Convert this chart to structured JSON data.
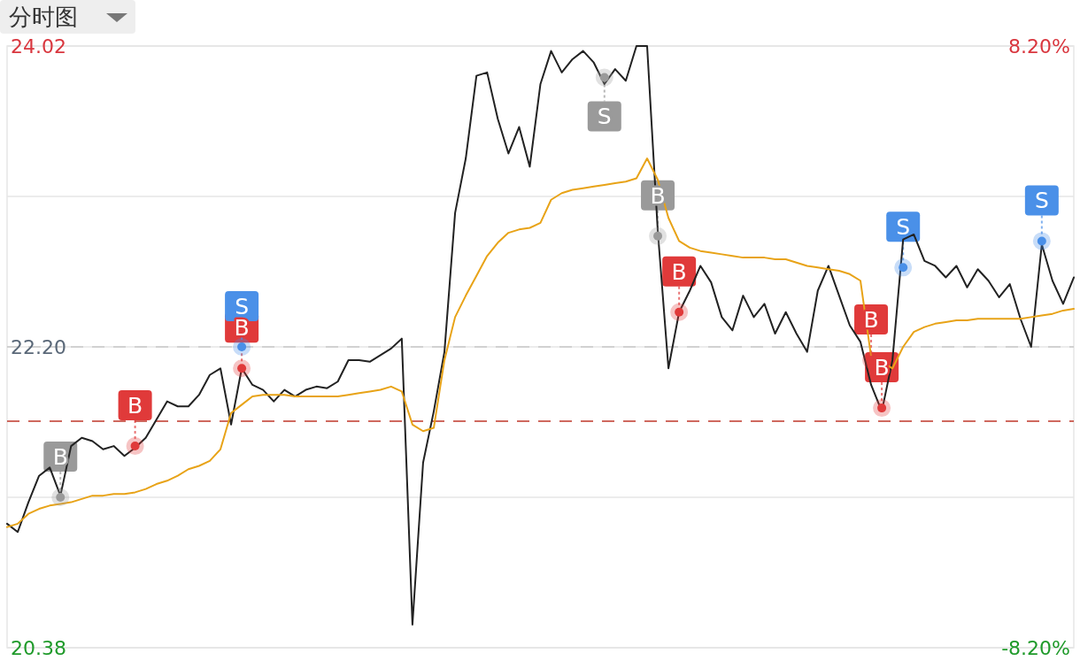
{
  "chart_data": {
    "type": "line",
    "title": "分时图",
    "categories": [
      null,
      null,
      null,
      null,
      null,
      null,
      null,
      null,
      null,
      null,
      null,
      null,
      null,
      null,
      null,
      null,
      null,
      null,
      null,
      null,
      null,
      null,
      null,
      null,
      null,
      null,
      null,
      null,
      null,
      null,
      null,
      null,
      null,
      null,
      null,
      null,
      null,
      null,
      null,
      null,
      null,
      null,
      null,
      null,
      null,
      null,
      null,
      null,
      null,
      null,
      null,
      null,
      null,
      null,
      null,
      null,
      null,
      null,
      null,
      null,
      null,
      null,
      null,
      null,
      null,
      null,
      null,
      null,
      null,
      null,
      null,
      null,
      null,
      null,
      null,
      null,
      null,
      null,
      null,
      null,
      null,
      null,
      null,
      null,
      null,
      null,
      null,
      null,
      null,
      null,
      null,
      null,
      null,
      null,
      null,
      null,
      null,
      null,
      null,
      null,
      null
    ],
    "ylim": [
      20.38,
      24.02
    ],
    "yticks": [
      20.38,
      {
        "value": 21.29,
        "label": null
      },
      {
        "value": 22.2,
        "label": "22.20"
      },
      {
        "value": 23.11,
        "label": null
      },
      24.02
    ],
    "y2lim": [
      -8.2,
      8.2
    ],
    "y2ticks": [
      {
        "value": -8.2,
        "label": "-8.20%"
      },
      {
        "value": 8.2,
        "label": "8.20%"
      }
    ],
    "grid": "y",
    "ref_lines": [
      {
        "axis": "y",
        "value": 22.2,
        "color": "#c8c8c8",
        "line_style": "dashed"
      },
      {
        "axis": "y",
        "value": 21.75,
        "color": "#c0392b",
        "line_style": "dashed"
      }
    ],
    "series": [
      {
        "color": "#222222",
        "values": [
          21.13,
          21.08,
          21.26,
          21.42,
          21.47,
          21.3,
          21.6,
          21.65,
          21.63,
          21.58,
          21.6,
          21.54,
          21.59,
          21.65,
          21.76,
          21.87,
          21.84,
          21.84,
          21.91,
          22.03,
          22.07,
          21.73,
          22.07,
          21.97,
          21.94,
          21.87,
          21.94,
          21.9,
          21.94,
          21.96,
          21.95,
          21.99,
          22.12,
          22.12,
          22.11,
          22.15,
          22.19,
          22.25,
          20.52,
          21.5,
          21.81,
          22.17,
          23.01,
          23.34,
          23.84,
          23.86,
          23.58,
          23.37,
          23.53,
          23.29,
          23.79,
          23.99,
          23.86,
          23.94,
          23.99,
          23.92,
          23.79,
          23.88,
          23.81,
          24.02,
          24.02,
          22.9,
          22.07,
          22.41,
          22.54,
          22.69,
          22.59,
          22.38,
          22.3,
          22.51,
          22.38,
          22.46,
          22.28,
          22.41,
          22.28,
          22.17,
          22.54,
          22.69,
          22.51,
          22.33,
          22.23,
          21.97,
          21.81,
          22.12,
          22.85,
          22.88,
          22.72,
          22.69,
          22.62,
          22.69,
          22.56,
          22.67,
          22.6,
          22.5,
          22.58,
          22.37,
          22.2,
          22.82,
          22.6,
          22.46,
          22.62
        ]
      },
      {
        "color": "#e8a317",
        "values": [
          21.11,
          21.13,
          21.19,
          21.22,
          21.24,
          21.25,
          21.26,
          21.28,
          21.3,
          21.3,
          21.31,
          21.31,
          21.32,
          21.34,
          21.37,
          21.39,
          21.42,
          21.46,
          21.48,
          21.51,
          21.58,
          21.8,
          21.85,
          21.9,
          21.91,
          21.91,
          21.91,
          21.9,
          21.9,
          21.9,
          21.9,
          21.9,
          21.91,
          21.92,
          21.93,
          21.94,
          21.96,
          21.93,
          21.73,
          21.69,
          21.71,
          22.12,
          22.38,
          22.51,
          22.63,
          22.75,
          22.83,
          22.89,
          22.91,
          22.92,
          22.95,
          23.09,
          23.13,
          23.15,
          23.16,
          23.17,
          23.18,
          23.19,
          23.2,
          23.22,
          23.34,
          23.21,
          22.98,
          22.84,
          22.8,
          22.78,
          22.77,
          22.76,
          22.75,
          22.74,
          22.74,
          22.74,
          22.73,
          22.73,
          22.71,
          22.69,
          22.68,
          22.67,
          22.66,
          22.64,
          22.6,
          22.14,
          22.11,
          22.07,
          22.2,
          22.29,
          22.32,
          22.34,
          22.35,
          22.36,
          22.36,
          22.37,
          22.37,
          22.37,
          22.37,
          22.37,
          22.38,
          22.39,
          22.4,
          22.42,
          22.43
        ]
      },
      {
        "type": "scatter",
        "color": "#9a9a9a",
        "values": [
          null,
          null,
          null,
          null,
          null,
          21.29,
          null,
          null,
          null,
          null,
          null,
          null,
          null,
          null,
          null,
          null,
          null,
          null,
          null,
          null,
          null,
          null,
          null,
          null,
          null,
          null,
          null,
          null,
          null,
          null,
          null,
          null,
          null,
          null,
          null,
          null,
          null,
          null,
          null,
          null,
          null,
          null,
          null,
          null,
          null,
          null,
          null,
          null,
          null,
          null,
          null,
          null,
          null,
          null,
          null,
          null,
          23.83,
          null,
          null,
          null,
          null,
          22.87,
          null,
          null,
          null,
          null,
          null,
          null,
          null,
          null,
          null,
          null,
          null,
          null,
          null,
          null,
          null,
          null,
          null,
          null,
          null,
          null,
          null,
          null,
          null,
          null,
          null,
          null,
          null,
          null,
          null,
          null,
          null,
          null,
          null,
          null,
          null,
          null,
          null,
          null,
          null
        ],
        "value_labels": [
          null,
          null,
          null,
          null,
          null,
          "B",
          null,
          null,
          null,
          null,
          null,
          null,
          null,
          null,
          null,
          null,
          null,
          null,
          null,
          null,
          null,
          null,
          null,
          null,
          null,
          null,
          null,
          null,
          null,
          null,
          null,
          null,
          null,
          null,
          null,
          null,
          null,
          null,
          null,
          null,
          null,
          null,
          null,
          null,
          null,
          null,
          null,
          null,
          null,
          null,
          null,
          null,
          null,
          null,
          null,
          null,
          "S",
          null,
          null,
          null,
          null,
          "B",
          null,
          null,
          null,
          null,
          null,
          null,
          null,
          null,
          null,
          null,
          null,
          null,
          null,
          null,
          null,
          null,
          null,
          null,
          null,
          null,
          null,
          null,
          null,
          null,
          null,
          null,
          null,
          null,
          null,
          null,
          null,
          null,
          null,
          null,
          null,
          null,
          null,
          null,
          null
        ]
      },
      {
        "type": "scatter",
        "color": "#e03a3a",
        "values": [
          null,
          null,
          null,
          null,
          null,
          null,
          null,
          null,
          null,
          null,
          null,
          null,
          21.6,
          null,
          null,
          null,
          null,
          null,
          null,
          null,
          null,
          null,
          22.07,
          null,
          null,
          null,
          null,
          null,
          null,
          null,
          null,
          null,
          null,
          null,
          null,
          null,
          null,
          null,
          null,
          null,
          null,
          null,
          null,
          null,
          null,
          null,
          null,
          null,
          null,
          null,
          null,
          null,
          null,
          null,
          null,
          null,
          null,
          null,
          null,
          null,
          null,
          null,
          null,
          22.41,
          null,
          null,
          null,
          null,
          null,
          null,
          null,
          null,
          null,
          null,
          null,
          null,
          null,
          null,
          null,
          null,
          null,
          22.12,
          21.83,
          null,
          null,
          null,
          null,
          null,
          null,
          null,
          null,
          null,
          null,
          null,
          null,
          null,
          null,
          null,
          null,
          null,
          null
        ],
        "value_labels": [
          null,
          null,
          null,
          null,
          null,
          null,
          null,
          null,
          null,
          null,
          null,
          null,
          "B",
          null,
          null,
          null,
          null,
          null,
          null,
          null,
          null,
          null,
          "B",
          null,
          null,
          null,
          null,
          null,
          null,
          null,
          null,
          null,
          null,
          null,
          null,
          null,
          null,
          null,
          null,
          null,
          null,
          null,
          null,
          null,
          null,
          null,
          null,
          null,
          null,
          null,
          null,
          null,
          null,
          null,
          null,
          null,
          null,
          null,
          null,
          null,
          null,
          null,
          null,
          "B",
          null,
          null,
          null,
          null,
          null,
          null,
          null,
          null,
          null,
          null,
          null,
          null,
          null,
          null,
          null,
          null,
          null,
          "B",
          "B",
          null,
          null,
          null,
          null,
          null,
          null,
          null,
          null,
          null,
          null,
          null,
          null,
          null,
          null,
          null,
          null,
          null,
          null
        ]
      },
      {
        "type": "scatter",
        "color": "#4a90e8",
        "values": [
          null,
          null,
          null,
          null,
          null,
          null,
          null,
          null,
          null,
          null,
          null,
          null,
          null,
          null,
          null,
          null,
          null,
          null,
          null,
          null,
          null,
          null,
          22.2,
          null,
          null,
          null,
          null,
          null,
          null,
          null,
          null,
          null,
          null,
          null,
          null,
          null,
          null,
          null,
          null,
          null,
          null,
          null,
          null,
          null,
          null,
          null,
          null,
          null,
          null,
          null,
          null,
          null,
          null,
          null,
          null,
          null,
          null,
          null,
          null,
          null,
          null,
          null,
          null,
          null,
          null,
          null,
          null,
          null,
          null,
          null,
          null,
          null,
          null,
          null,
          null,
          null,
          null,
          null,
          null,
          null,
          null,
          null,
          null,
          null,
          22.68,
          null,
          null,
          null,
          null,
          null,
          null,
          null,
          null,
          null,
          null,
          null,
          null,
          22.84,
          null,
          null,
          null
        ],
        "value_labels": [
          null,
          null,
          null,
          null,
          null,
          null,
          null,
          null,
          null,
          null,
          null,
          null,
          null,
          null,
          null,
          null,
          null,
          null,
          null,
          null,
          null,
          null,
          "S",
          null,
          null,
          null,
          null,
          null,
          null,
          null,
          null,
          null,
          null,
          null,
          null,
          null,
          null,
          null,
          null,
          null,
          null,
          null,
          null,
          null,
          null,
          null,
          null,
          null,
          null,
          null,
          null,
          null,
          null,
          null,
          null,
          null,
          null,
          null,
          null,
          null,
          null,
          null,
          null,
          null,
          null,
          null,
          null,
          null,
          null,
          null,
          null,
          null,
          null,
          null,
          null,
          null,
          null,
          null,
          null,
          null,
          null,
          null,
          null,
          null,
          "S",
          null,
          null,
          null,
          null,
          null,
          null,
          null,
          null,
          null,
          null,
          null,
          null,
          "S",
          null,
          null,
          null
        ]
      }
    ]
  }
}
